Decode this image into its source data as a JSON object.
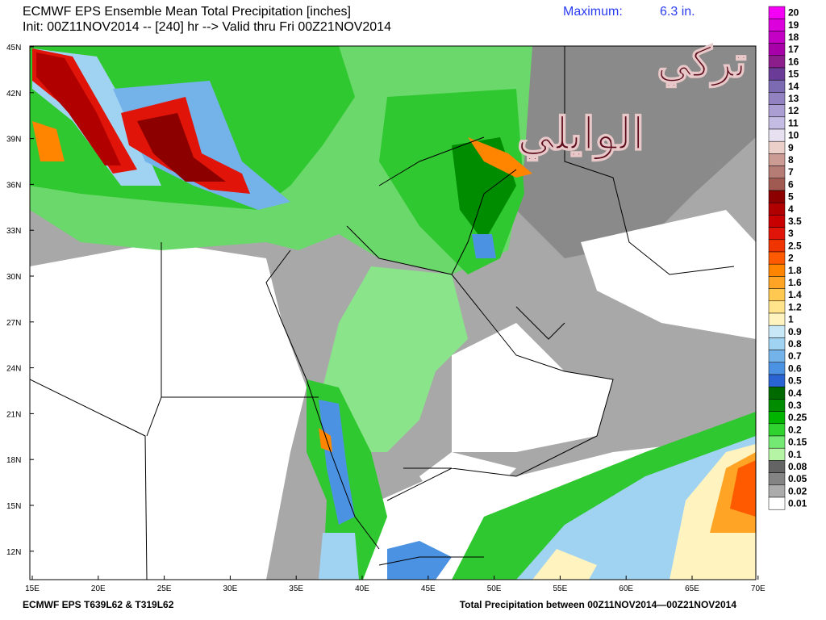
{
  "header": {
    "title": "ECMWF EPS Ensemble Mean Total Precipitation [inches]",
    "init": "Init: 00Z11NOV2014 -- [240] hr --> Valid thru Fri 00Z21NOV2014",
    "maximum_label": "Maximum:",
    "maximum_value": "6.3 in."
  },
  "watermark": {
    "line1": "تركي",
    "line2": "الوايلي"
  },
  "map": {
    "lat_labels": [
      "45N",
      "42N",
      "39N",
      "36N",
      "33N",
      "30N",
      "27N",
      "24N",
      "21N",
      "18N",
      "15N",
      "12N"
    ],
    "lon_labels": [
      "15E",
      "20E",
      "25E",
      "30E",
      "35E",
      "40E",
      "45E",
      "50E",
      "55E",
      "60E",
      "65E",
      "70E"
    ]
  },
  "colorbar": {
    "levels": [
      {
        "label": "20",
        "color": "#f400f4"
      },
      {
        "label": "19",
        "color": "#dc00dc"
      },
      {
        "label": "18",
        "color": "#c400c4"
      },
      {
        "label": "17",
        "color": "#a800a8"
      },
      {
        "label": "16",
        "color": "#8c1e8c"
      },
      {
        "label": "15",
        "color": "#6a3c98"
      },
      {
        "label": "14",
        "color": "#7c6ab2"
      },
      {
        "label": "13",
        "color": "#9282c2"
      },
      {
        "label": "12",
        "color": "#aa9ed2"
      },
      {
        "label": "11",
        "color": "#c4bce2"
      },
      {
        "label": "10",
        "color": "#e6e0f0"
      },
      {
        "label": "9",
        "color": "#ead0c8"
      },
      {
        "label": "8",
        "color": "#cc9c94"
      },
      {
        "label": "7",
        "color": "#b47c74"
      },
      {
        "label": "6",
        "color": "#a05a52"
      },
      {
        "label": "5",
        "color": "#8c0000"
      },
      {
        "label": "4",
        "color": "#b00000"
      },
      {
        "label": "3.5",
        "color": "#c80000"
      },
      {
        "label": "3",
        "color": "#e01408"
      },
      {
        "label": "2.5",
        "color": "#f03400"
      },
      {
        "label": "2",
        "color": "#ff5a00"
      },
      {
        "label": "1.8",
        "color": "#ff8400"
      },
      {
        "label": "1.6",
        "color": "#ffa424"
      },
      {
        "label": "1.4",
        "color": "#ffc850"
      },
      {
        "label": "1.2",
        "color": "#ffe48c"
      },
      {
        "label": "1",
        "color": "#fff4c0"
      },
      {
        "label": "0.9",
        "color": "#c8e8f8"
      },
      {
        "label": "0.8",
        "color": "#a0d2f2"
      },
      {
        "label": "0.7",
        "color": "#74b2ea"
      },
      {
        "label": "0.6",
        "color": "#4c92e2"
      },
      {
        "label": "0.5",
        "color": "#2a64d2"
      },
      {
        "label": "0.4",
        "color": "#006a00"
      },
      {
        "label": "0.3",
        "color": "#008c00"
      },
      {
        "label": "0.25",
        "color": "#00b400"
      },
      {
        "label": "0.2",
        "color": "#30d230"
      },
      {
        "label": "0.15",
        "color": "#74ea74"
      },
      {
        "label": "0.1",
        "color": "#b4f4a4"
      },
      {
        "label": "0.08",
        "color": "#646464"
      },
      {
        "label": "0.05",
        "color": "#848484"
      },
      {
        "label": "0.02",
        "color": "#acacac"
      },
      {
        "label": "0.01",
        "color": "#ffffff"
      }
    ]
  },
  "footer": {
    "model": "ECMWF EPS T639L62 & T319L62",
    "period": "Total Precipitation between 00Z11NOV2014—00Z21NOV2014"
  }
}
